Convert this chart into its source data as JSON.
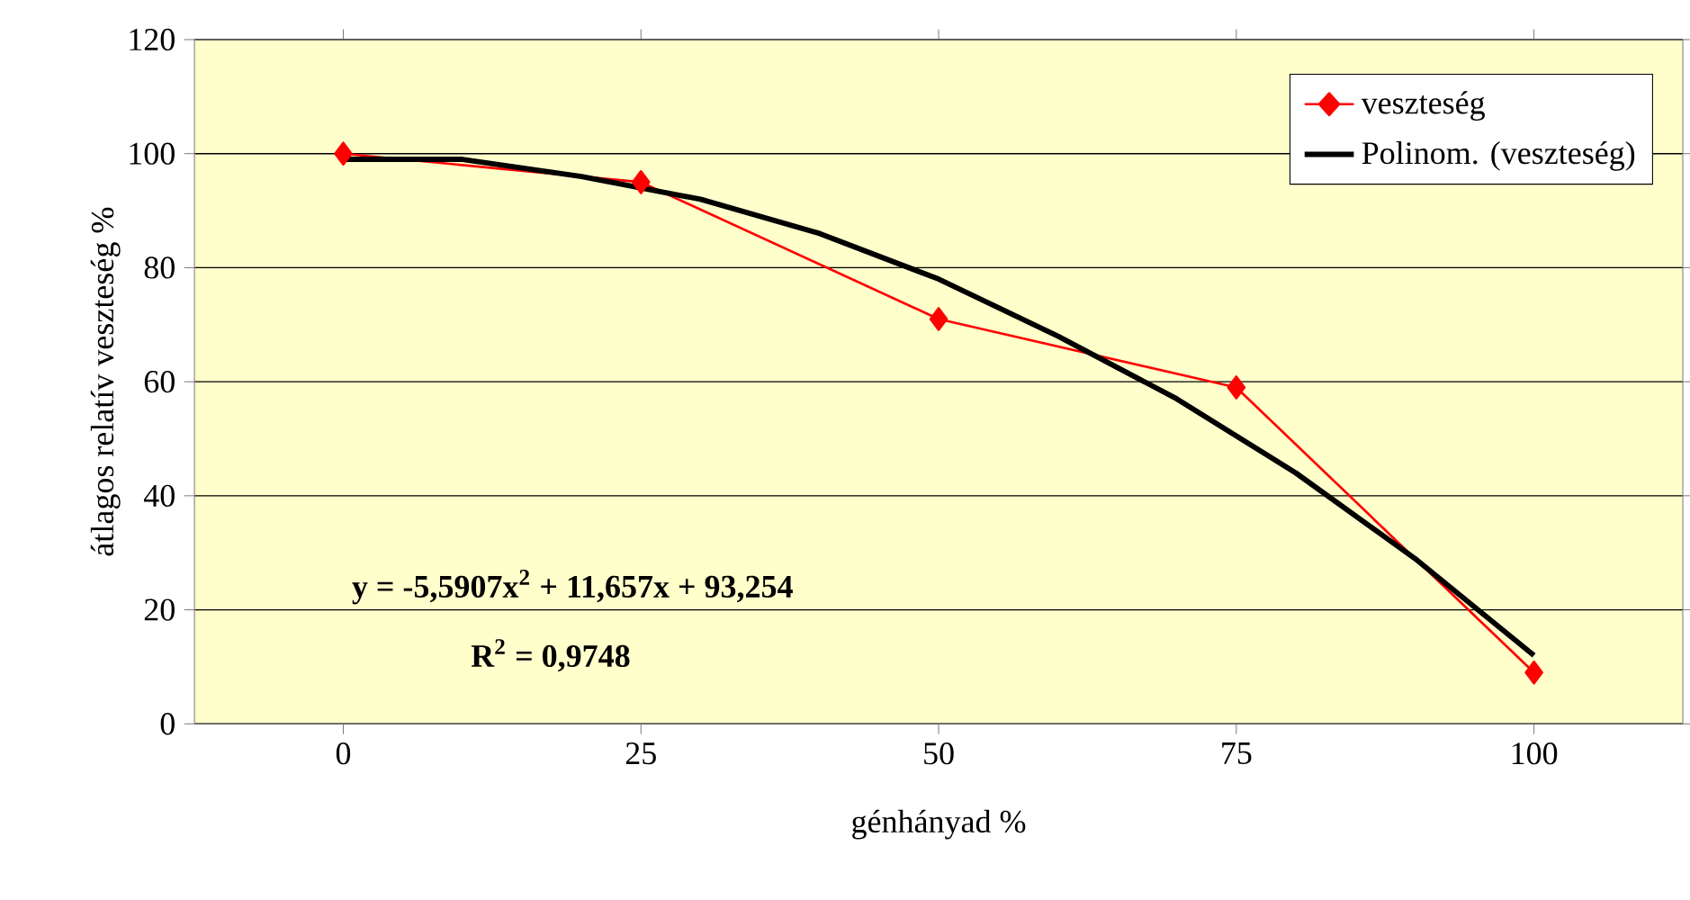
{
  "chart_data": {
    "type": "line",
    "xlabel": "génhányad %",
    "ylabel": "átlagos relatív veszteség %",
    "x": [
      0,
      25,
      50,
      75,
      100
    ],
    "series": [
      {
        "name": "veszteség",
        "color": "#ff0000",
        "values": [
          100,
          95,
          71,
          59,
          9
        ],
        "marker": "diamond"
      },
      {
        "name": "Polinom. (veszteség)",
        "color": "#000000",
        "x": [
          0,
          10,
          20,
          30,
          40,
          50,
          60,
          70,
          80,
          90,
          100
        ],
        "values": [
          99,
          99,
          96,
          92,
          86,
          78,
          68,
          57,
          44,
          29,
          12
        ],
        "marker": "none"
      }
    ],
    "xlim": [
      -12.5,
      112.5
    ],
    "xticks": [
      0,
      25,
      50,
      75,
      100
    ],
    "ylim": [
      0,
      120
    ],
    "yticks": [
      0,
      20,
      40,
      60,
      80,
      100,
      120
    ],
    "grid": "y",
    "legend": "top right",
    "annotations": [
      "y = -5,5907x$^{2}$ + 11,657x + 93,254",
      "R$^{2}$ = 0,9748"
    ]
  }
}
